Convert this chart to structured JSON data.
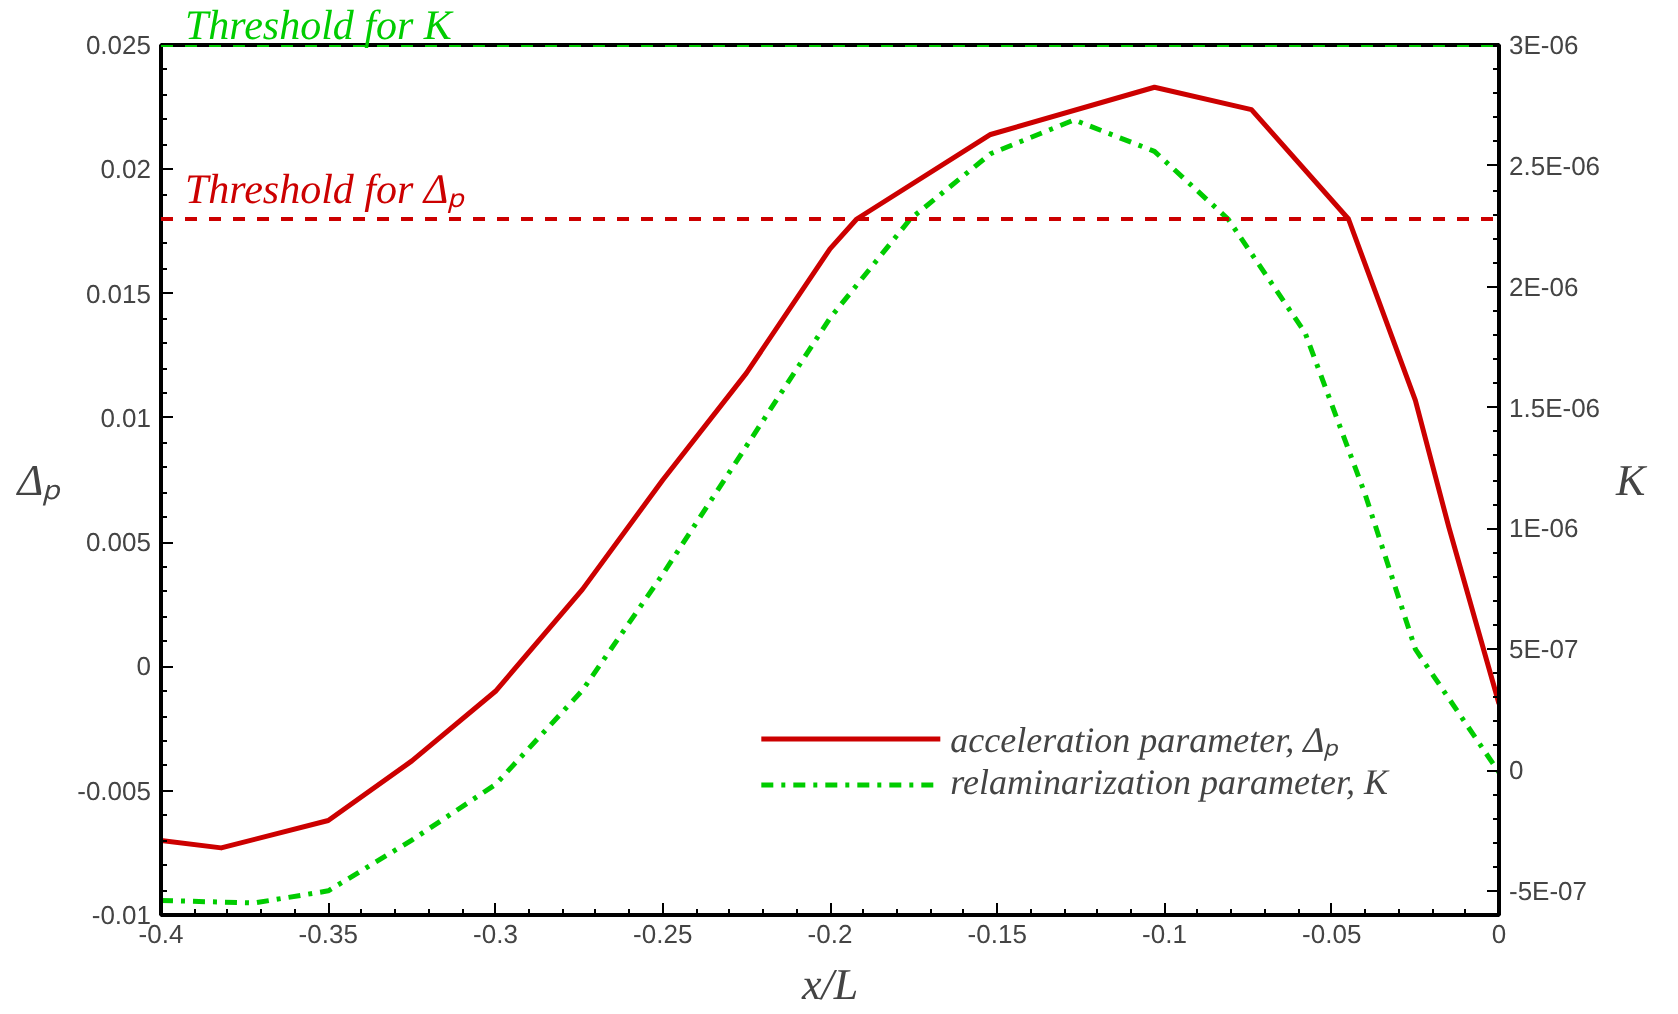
{
  "chart_data": {
    "type": "line",
    "xlabel": "x/L",
    "ylabel": "Δₚ",
    "y2label": "K",
    "xlim": [
      -0.4,
      0
    ],
    "xticks": [
      -0.4,
      -0.35,
      -0.3,
      -0.25,
      -0.2,
      -0.15,
      -0.1,
      -0.05,
      0
    ],
    "ylim": [
      -0.01,
      0.025
    ],
    "yticks": [
      -0.01,
      -0.005,
      0,
      0.005,
      0.01,
      0.015,
      0.02,
      0.025
    ],
    "y2lim": [
      -6e-07,
      3e-06
    ],
    "y2ticks": [
      {
        "value": -5e-07,
        "label": "-5E-07"
      },
      0,
      {
        "value": 5e-07,
        "label": "5E-07"
      },
      {
        "value": 1e-06,
        "label": "1E-06"
      },
      {
        "value": 1.5e-06,
        "label": "1.5E-06"
      },
      {
        "value": 2e-06,
        "label": "2E-06"
      },
      {
        "value": 2.5e-06,
        "label": "2.5E-06"
      },
      {
        "value": 3e-06,
        "label": "3E-06"
      }
    ],
    "series": [
      {
        "name": "acceleration parameter, Δₚ",
        "color": "#cc0000",
        "line_style": "solid",
        "x": [
          -0.4,
          -0.382,
          -0.35,
          -0.325,
          -0.3,
          -0.274,
          -0.25,
          -0.225,
          -0.2,
          -0.192,
          -0.152,
          -0.103,
          -0.074,
          -0.045,
          -0.025,
          -0.015,
          0
        ],
        "values": [
          -0.007,
          -0.0073,
          -0.0062,
          -0.0038,
          -0.001,
          0.0031,
          0.0075,
          0.0118,
          0.0168,
          0.018,
          0.0214,
          0.0233,
          0.0224,
          0.018,
          0.0107,
          0.0056,
          -0.0015
        ]
      },
      {
        "name": "relaminarization parameter, K",
        "color": "#00cc00",
        "line_style": "dashdot",
        "axis": "y2",
        "x": [
          -0.4,
          -0.372,
          -0.35,
          -0.325,
          -0.3,
          -0.274,
          -0.25,
          -0.225,
          -0.2,
          -0.176,
          -0.152,
          -0.127,
          -0.103,
          -0.081,
          -0.058,
          -0.04,
          -0.025,
          0
        ],
        "values": [
          -5.4e-07,
          -5.5e-07,
          -5e-07,
          -2.9e-07,
          -6e-08,
          3.3e-07,
          8.1e-07,
          1.34e-06,
          1.87e-06,
          2.28e-06,
          2.55e-06,
          2.69e-06,
          2.56e-06,
          2.28e-06,
          1.81e-06,
          1.14e-06,
          5e-07,
          -1e-08
        ]
      }
    ],
    "ref_lines": [
      {
        "axis": "y",
        "value": 0.018,
        "label": "Threshold for Δₚ",
        "color": "#cc0000",
        "line_style": "dashed"
      },
      {
        "axis": "y2",
        "value": 3e-06,
        "label": "Threshold for K",
        "color": "#00cc00",
        "line_style": "dashed"
      }
    ],
    "grid": false,
    "legend": "bottom right",
    "marker": "none"
  }
}
